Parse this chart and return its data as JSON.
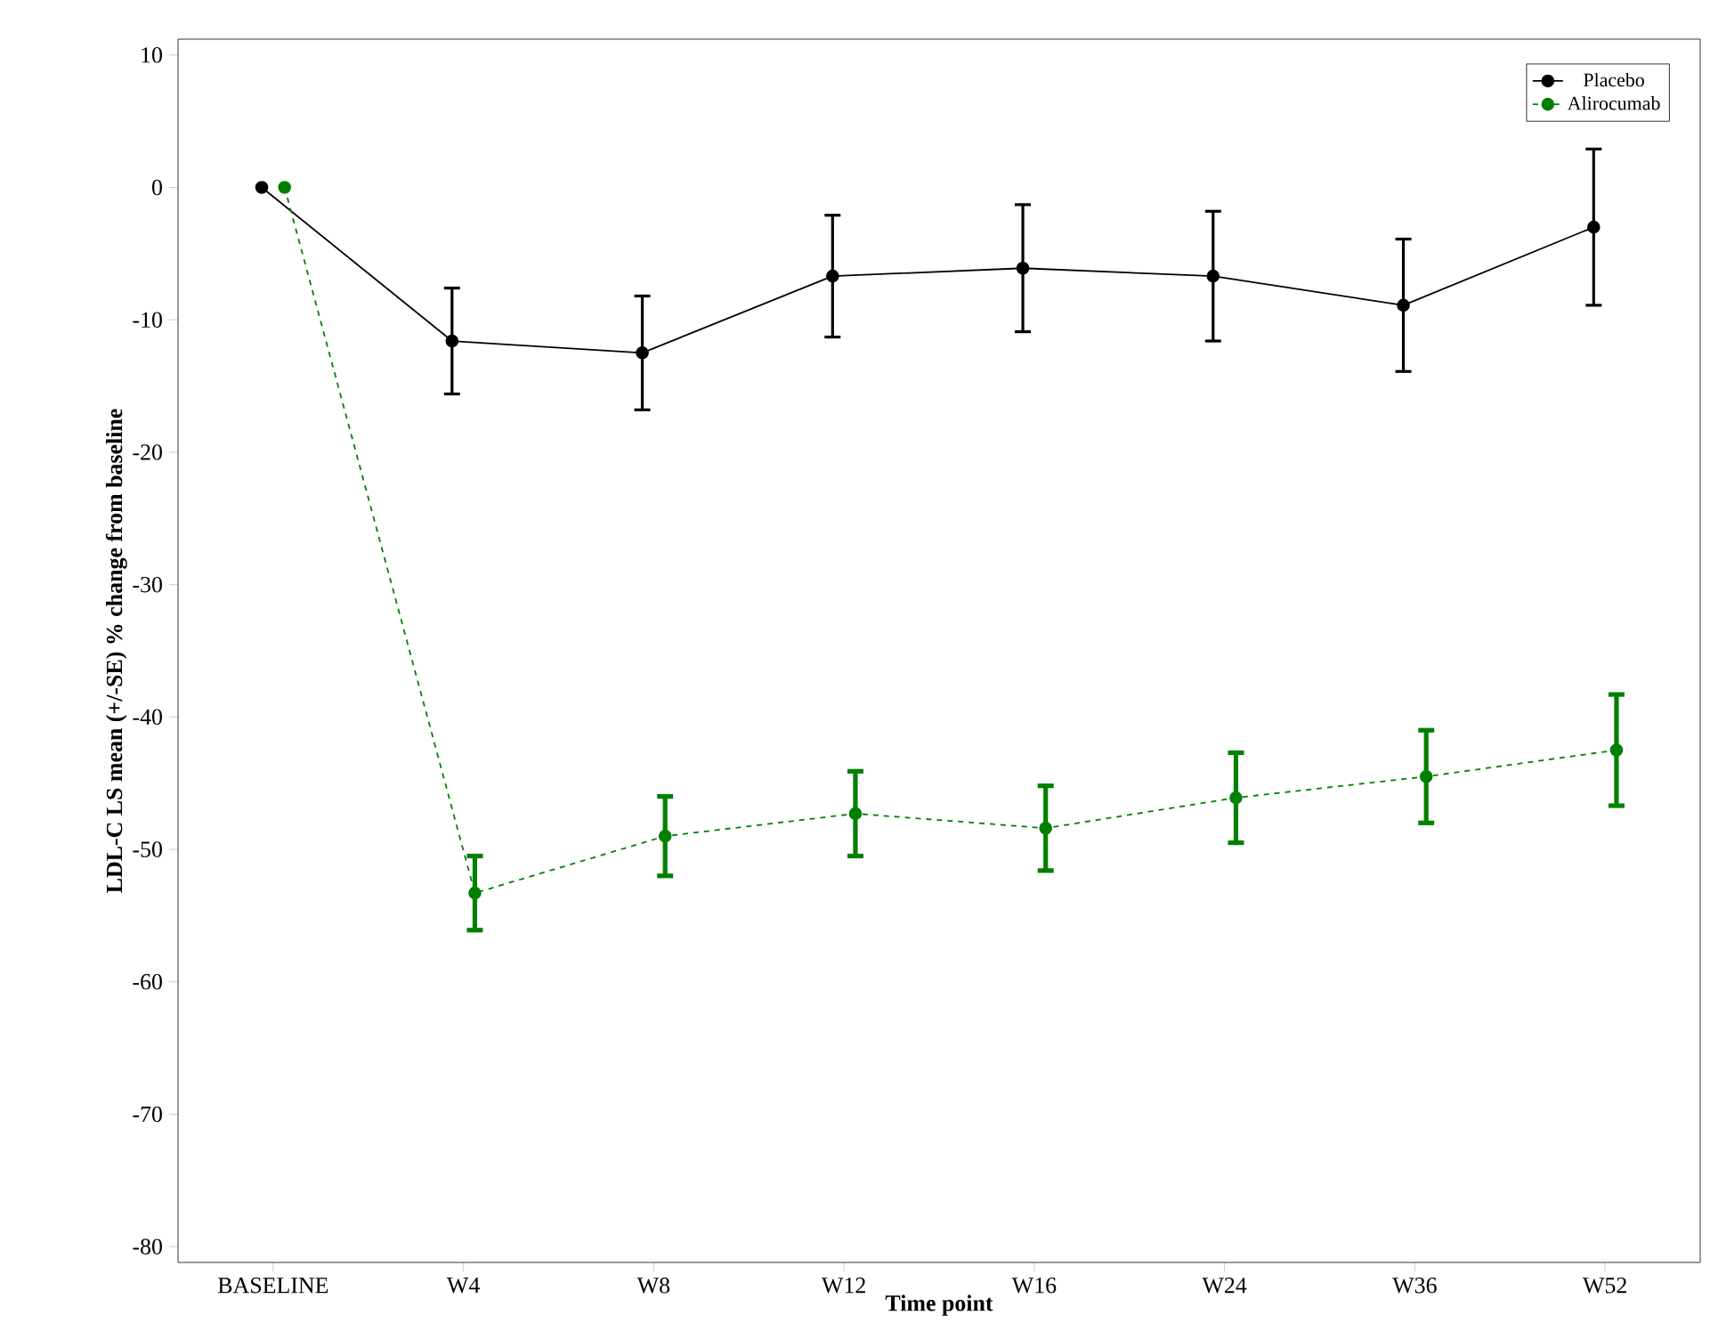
{
  "chart_data": {
    "type": "line",
    "xlabel": "Time point",
    "ylabel": "LDL-C LS mean (+/-SE) % change from baseline",
    "categories": [
      "BASELINE",
      "W4",
      "W8",
      "W12",
      "W16",
      "W24",
      "W36",
      "W52"
    ],
    "ylim": [
      -81.2,
      11.2
    ],
    "yticks": [
      10,
      0,
      -10,
      -20,
      -30,
      -40,
      -50,
      -60,
      -70,
      -80
    ],
    "legend": "top right",
    "marker": "circle",
    "series": [
      {
        "name": "Placebo",
        "color": "#000000",
        "line_style": "solid",
        "values": [
          0,
          -11.6,
          -12.5,
          -6.7,
          -6.1,
          -6.7,
          -8.9,
          -3.0
        ],
        "errors": [
          null,
          4.0,
          4.3,
          4.6,
          4.8,
          4.9,
          5.0,
          5.9
        ]
      },
      {
        "name": "Alirocumab",
        "color": "#008000",
        "line_style": "dashed",
        "values": [
          0,
          -53.3,
          -49.0,
          -47.3,
          -48.4,
          -46.1,
          -44.5,
          -42.5
        ],
        "errors": [
          null,
          2.8,
          3.0,
          3.2,
          3.2,
          3.4,
          3.5,
          4.2
        ]
      }
    ]
  }
}
